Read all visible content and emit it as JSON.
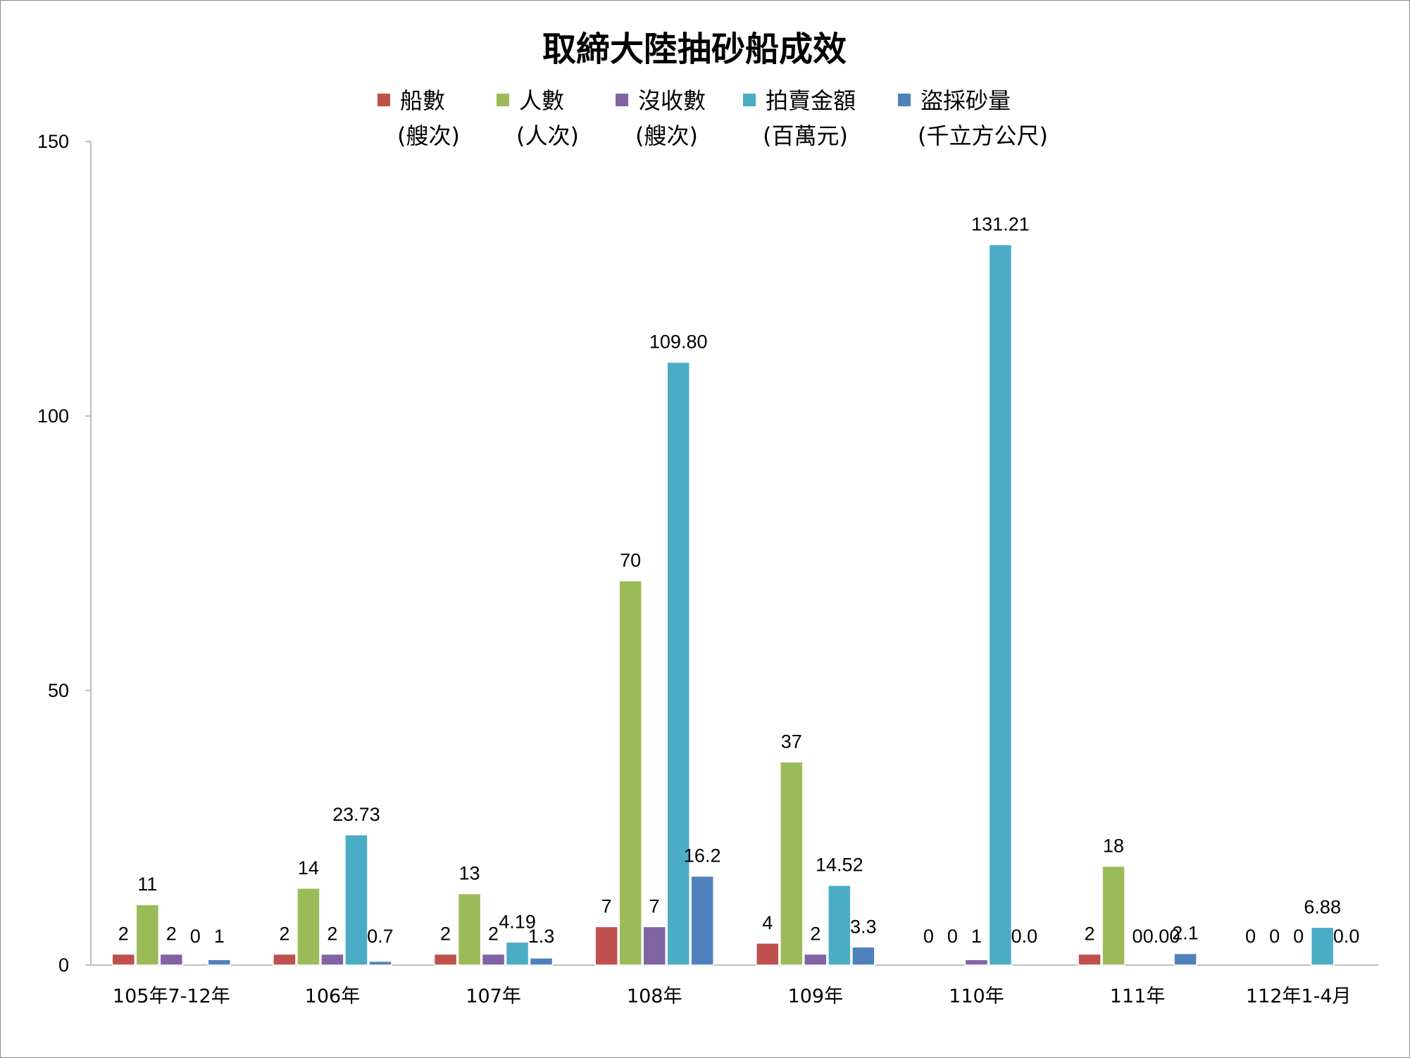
{
  "chart_data": {
    "type": "bar",
    "title": "取締大陸抽砂船成效",
    "categories": [
      "105年7-12年",
      "106年",
      "107年",
      "108年",
      "109年",
      "110年",
      "111年",
      "112年1-4月"
    ],
    "ylim": [
      0,
      150
    ],
    "yticks": [
      "0",
      "50",
      "100",
      "150"
    ],
    "grid": false,
    "legend_position": "top",
    "series": [
      {
        "name": "船數",
        "unit": "(艘次)",
        "color": "#c0504d",
        "values": [
          2,
          2,
          2,
          7,
          4,
          0,
          2,
          0
        ],
        "labels": [
          "2",
          "2",
          "2",
          "7",
          "4",
          "0",
          "2",
          "0"
        ]
      },
      {
        "name": "人數",
        "unit": "(人次)",
        "color": "#9bbb59",
        "values": [
          11,
          14,
          13,
          70,
          37,
          0,
          18,
          0
        ],
        "labels": [
          "11",
          "14",
          "13",
          "70",
          "37",
          "0",
          "18",
          "0"
        ]
      },
      {
        "name": "沒收數",
        "unit": "(艘次)",
        "color": "#8064a2",
        "values": [
          2,
          2,
          2,
          7,
          2,
          1,
          0,
          0
        ],
        "labels": [
          "2",
          "2",
          "2",
          "7",
          "2",
          "1",
          "0",
          "0"
        ]
      },
      {
        "name": "拍賣金額",
        "unit": "(百萬元)",
        "color": "#4bacc6",
        "values": [
          0,
          23.73,
          4.19,
          109.8,
          14.52,
          131.21,
          0.0,
          6.88
        ],
        "labels": [
          "0",
          "23.73",
          "4.19",
          "109.80",
          "14.52",
          "131.21",
          "0.00",
          "6.88"
        ]
      },
      {
        "name": "盜採砂量",
        "unit": "(千立方公尺)",
        "color": "#4f81bd",
        "values": [
          1,
          0.7,
          1.3,
          16.2,
          3.3,
          0.0,
          2.1,
          0.0
        ],
        "labels": [
          "1",
          "0.7",
          "1.3",
          "16.2",
          "3.3",
          "0.0",
          "2.1",
          "0.0"
        ]
      }
    ]
  }
}
